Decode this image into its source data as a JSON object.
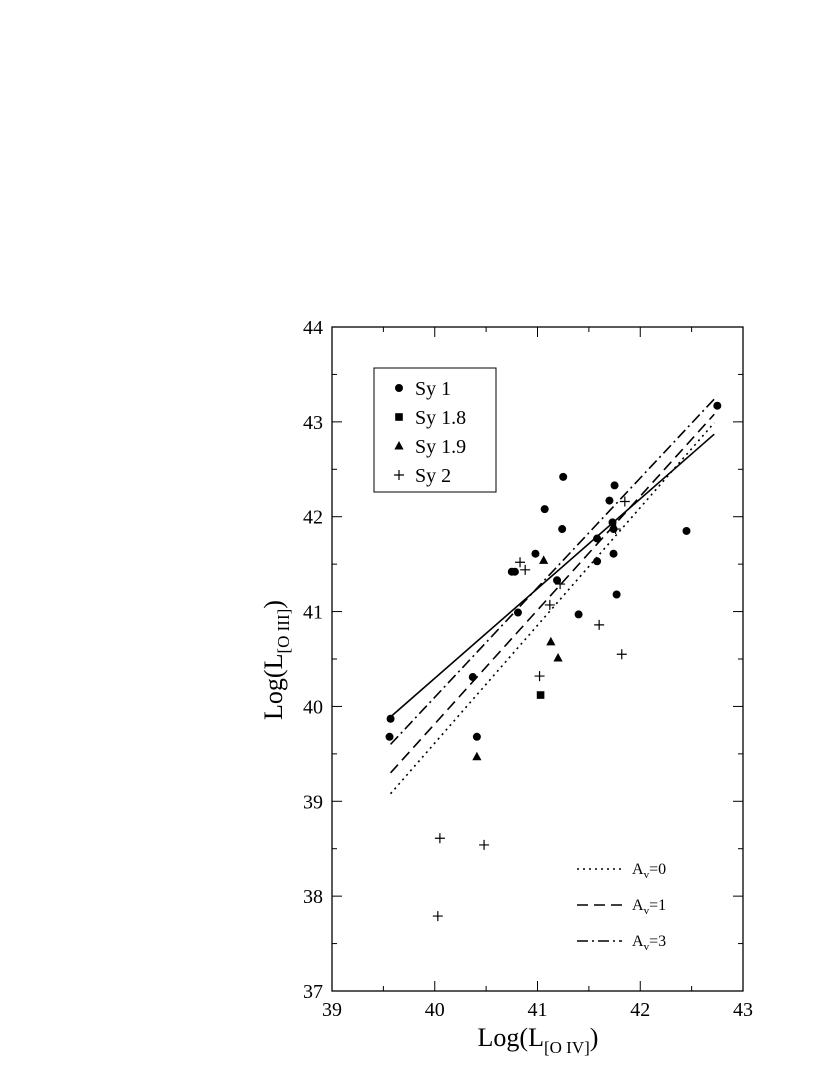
{
  "chart_data": {
    "type": "scatter",
    "title": "",
    "xlabel": {
      "base": "Log(L",
      "sub": "[O IV]",
      "close": ")"
    },
    "ylabel": {
      "base": "Log(L",
      "sub": "[O III]",
      "close": ")"
    },
    "xlim": [
      39,
      43
    ],
    "ylim": [
      37,
      44
    ],
    "xticks": [
      "39",
      "40",
      "41",
      "42",
      "43"
    ],
    "yticks": [
      "37",
      "38",
      "39",
      "40",
      "41",
      "42",
      "43",
      "44"
    ],
    "grid": false,
    "legend_position": "top-left",
    "series": [
      {
        "name": "Sy 1",
        "marker": "circle",
        "points": [
          [
            39.57,
            39.87
          ],
          [
            39.56,
            39.68
          ],
          [
            40.37,
            40.31
          ],
          [
            40.41,
            39.68
          ],
          [
            40.75,
            41.42
          ],
          [
            40.78,
            41.42
          ],
          [
            40.81,
            40.99
          ],
          [
            40.98,
            41.61
          ],
          [
            41.07,
            42.08
          ],
          [
            41.19,
            41.33
          ],
          [
            41.24,
            41.87
          ],
          [
            41.25,
            42.42
          ],
          [
            41.4,
            40.97
          ],
          [
            41.58,
            41.77
          ],
          [
            41.58,
            41.53
          ],
          [
            41.7,
            42.17
          ],
          [
            41.73,
            41.94
          ],
          [
            41.74,
            41.87
          ],
          [
            41.75,
            42.33
          ],
          [
            41.74,
            41.61
          ],
          [
            41.77,
            41.18
          ],
          [
            42.45,
            41.85
          ],
          [
            42.75,
            43.17
          ]
        ]
      },
      {
        "name": "Sy 1.8",
        "marker": "square",
        "points": [
          [
            41.03,
            40.12
          ]
        ]
      },
      {
        "name": "Sy 1.9",
        "marker": "triangle",
        "points": [
          [
            40.41,
            39.47
          ],
          [
            41.06,
            41.54
          ],
          [
            41.13,
            40.68
          ],
          [
            41.2,
            40.51
          ]
        ]
      },
      {
        "name": "Sy 2",
        "marker": "plus",
        "points": [
          [
            40.05,
            38.61
          ],
          [
            40.03,
            37.79
          ],
          [
            40.48,
            38.54
          ],
          [
            40.83,
            41.52
          ],
          [
            40.88,
            41.44
          ],
          [
            41.02,
            40.32
          ],
          [
            41.12,
            41.07
          ],
          [
            41.22,
            41.29
          ],
          [
            41.6,
            40.86
          ],
          [
            41.76,
            41.87
          ],
          [
            41.82,
            40.55
          ],
          [
            41.85,
            42.16
          ]
        ]
      }
    ],
    "lines": [
      {
        "name": "fit",
        "style": "solid",
        "x": [
          39.57,
          42.72
        ],
        "y": [
          39.89,
          42.87
        ]
      },
      {
        "name": "A_v=0",
        "style": "dotted",
        "x": [
          39.57,
          42.72
        ],
        "y": [
          39.08,
          42.99
        ]
      },
      {
        "name": "A_v=1",
        "style": "dashed",
        "x": [
          39.57,
          42.72
        ],
        "y": [
          39.3,
          43.08
        ]
      },
      {
        "name": "A_v=3",
        "style": "dashdot",
        "x": [
          39.57,
          42.72
        ],
        "y": [
          39.6,
          43.24
        ]
      }
    ],
    "line_legend": [
      {
        "style": "dotted",
        "base": "A",
        "sub": "v",
        "rest": "=0"
      },
      {
        "style": "dashed",
        "base": "A",
        "sub": "v",
        "rest": "=1"
      },
      {
        "style": "dashdot",
        "base": "A",
        "sub": "v",
        "rest": "=3"
      }
    ]
  }
}
